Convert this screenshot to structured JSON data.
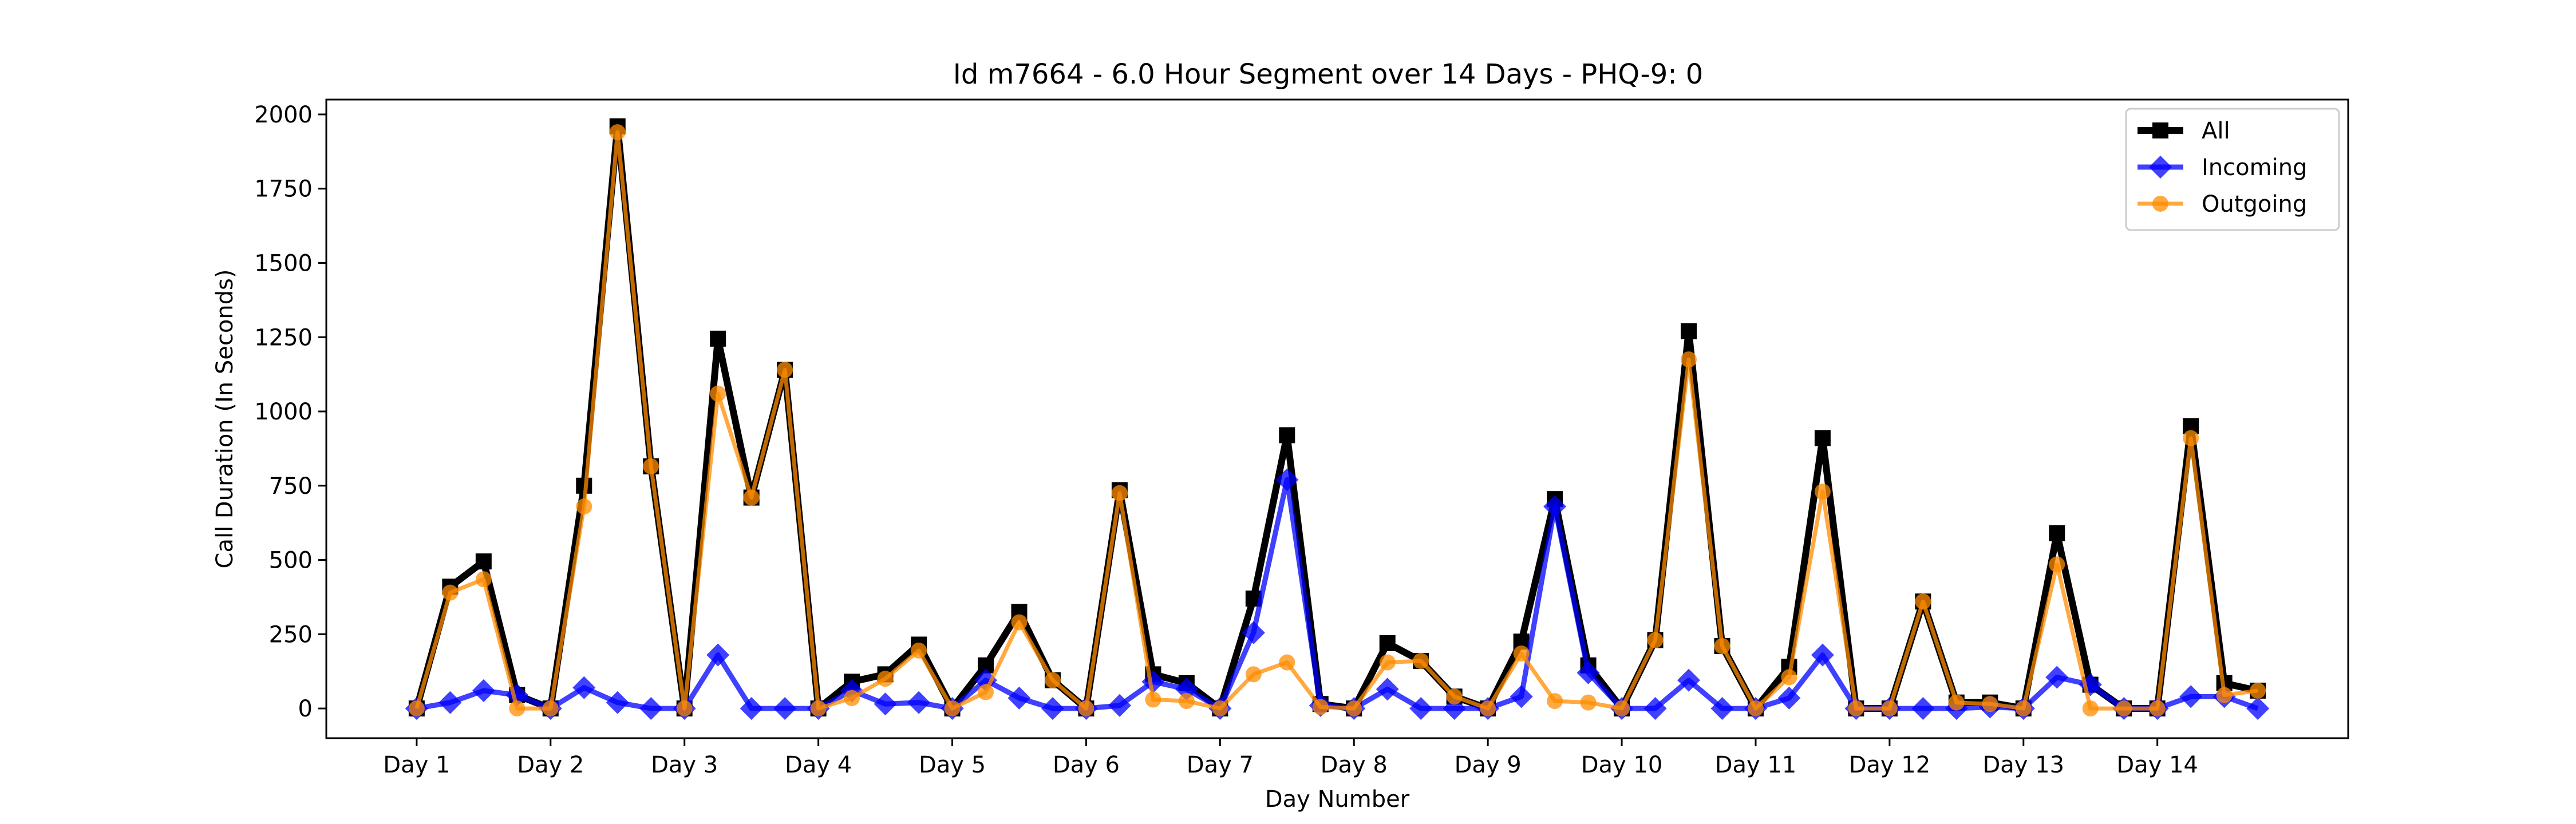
{
  "chart_data": {
    "type": "line",
    "title": "Id m7664 - 6.0 Hour Segment over 14 Days - PHQ-9: 0",
    "xlabel": "Day Number",
    "ylabel": "Call Duration (In Seconds)",
    "ylim": [
      -100,
      2050
    ],
    "yticks": [
      0,
      250,
      500,
      750,
      1000,
      1250,
      1500,
      1750,
      2000
    ],
    "xticks": [
      0,
      4,
      8,
      12,
      16,
      20,
      24,
      28,
      32,
      36,
      40,
      44,
      48,
      52
    ],
    "xtick_labels": [
      "Day 1",
      "Day 2",
      "Day 3",
      "Day 4",
      "Day 5",
      "Day 6",
      "Day 7",
      "Day 8",
      "Day 9",
      "Day 10",
      "Day 11",
      "Day 12",
      "Day 13",
      "Day 14"
    ],
    "xlim": [
      -2.7,
      57.7
    ],
    "grid": false,
    "legend_position": "top-right",
    "series": [
      {
        "name": "All",
        "color": "#000000",
        "marker": "square",
        "values": [
          0,
          410,
          495,
          45,
          0,
          750,
          1960,
          815,
          0,
          1245,
          710,
          1140,
          0,
          90,
          115,
          215,
          0,
          145,
          325,
          95,
          0,
          735,
          115,
          85,
          0,
          370,
          920,
          15,
          0,
          220,
          160,
          40,
          0,
          225,
          705,
          145,
          0,
          230,
          1270,
          210,
          0,
          140,
          910,
          0,
          0,
          360,
          20,
          20,
          0,
          590,
          80,
          0,
          0,
          950,
          85,
          60
        ]
      },
      {
        "name": "Incoming",
        "color": "#0000ff",
        "marker": "diamond",
        "values": [
          0,
          20,
          60,
          45,
          0,
          70,
          20,
          0,
          0,
          180,
          0,
          0,
          0,
          60,
          15,
          20,
          0,
          95,
          35,
          0,
          0,
          10,
          90,
          65,
          0,
          255,
          770,
          10,
          0,
          65,
          0,
          0,
          0,
          40,
          680,
          120,
          0,
          0,
          95,
          0,
          0,
          35,
          180,
          0,
          0,
          0,
          0,
          5,
          0,
          105,
          80,
          0,
          0,
          40,
          40,
          0
        ]
      },
      {
        "name": "Outgoing",
        "color": "#ff8c00",
        "marker": "circle",
        "values": [
          0,
          390,
          435,
          0,
          0,
          680,
          1940,
          815,
          0,
          1060,
          710,
          1140,
          0,
          35,
          100,
          195,
          0,
          55,
          290,
          95,
          0,
          725,
          30,
          25,
          0,
          115,
          155,
          5,
          0,
          155,
          160,
          40,
          0,
          185,
          25,
          20,
          0,
          230,
          1175,
          210,
          0,
          105,
          730,
          0,
          0,
          360,
          20,
          15,
          0,
          485,
          0,
          0,
          0,
          910,
          45,
          60
        ]
      }
    ]
  }
}
